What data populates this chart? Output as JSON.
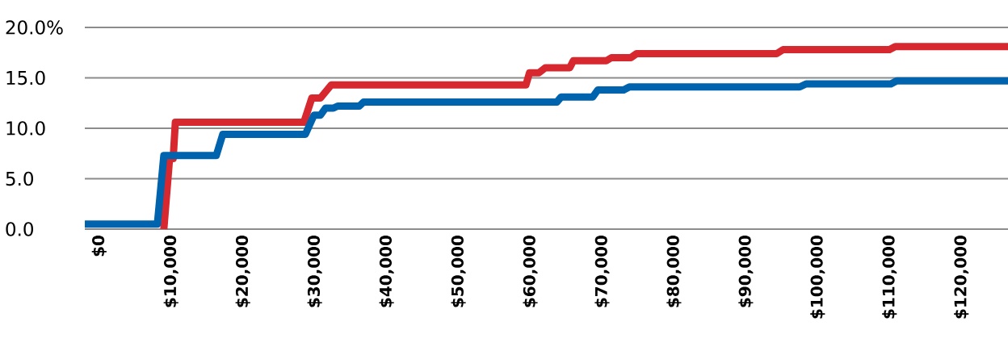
{
  "chart_data": {
    "type": "line",
    "xlim": [
      -2000,
      126500
    ],
    "ylim": [
      0,
      20
    ],
    "xticks": [
      {
        "value": 0,
        "label": "$0"
      },
      {
        "value": 10000,
        "label": "$10,000"
      },
      {
        "value": 20000,
        "label": "$20,000"
      },
      {
        "value": 30000,
        "label": "$30,000"
      },
      {
        "value": 40000,
        "label": "$40,000"
      },
      {
        "value": 50000,
        "label": "$50,000"
      },
      {
        "value": 60000,
        "label": "$60,000"
      },
      {
        "value": 70000,
        "label": "$70,000"
      },
      {
        "value": 80000,
        "label": "$80,000"
      },
      {
        "value": 90000,
        "label": "$90,000"
      },
      {
        "value": 100000,
        "label": "$100,000"
      },
      {
        "value": 110000,
        "label": "$110,000"
      },
      {
        "value": 120000,
        "label": "$120,000"
      }
    ],
    "yticks": [
      {
        "value": 0,
        "label": "0.0"
      },
      {
        "value": 5,
        "label": "5.0"
      },
      {
        "value": 10,
        "label": "10.0"
      },
      {
        "value": 15,
        "label": "15.0"
      },
      {
        "value": 20,
        "label": "20.0%"
      }
    ],
    "grid": "y",
    "series": [
      {
        "color": "#d7282f",
        "x": [
          9000,
          9800,
          10300,
          10600,
          28500,
          29600,
          30800,
          32300,
          59400,
          59900,
          61200,
          62100,
          65500,
          66000,
          70600,
          71300,
          74000,
          74800,
          94300,
          95200,
          110000,
          110800,
          126500
        ],
        "values": [
          0,
          7.0,
          7.0,
          10.6,
          10.6,
          13.0,
          13.0,
          14.3,
          14.3,
          15.5,
          15.5,
          16.0,
          16.0,
          16.7,
          16.7,
          17.0,
          17.0,
          17.4,
          17.4,
          17.8,
          17.8,
          18.1,
          18.1
        ]
      },
      {
        "color": "#0063ae",
        "x": [
          -2000,
          8100,
          9000,
          16300,
          17200,
          28700,
          29900,
          30800,
          31500,
          32600,
          33200,
          36200,
          36800,
          63700,
          64300,
          68700,
          69400,
          73000,
          73800,
          97500,
          98400,
          110200,
          111000,
          126500
        ],
        "values": [
          0.5,
          0.5,
          7.3,
          7.3,
          9.4,
          9.4,
          11.3,
          11.3,
          12.0,
          12.0,
          12.2,
          12.2,
          12.6,
          12.6,
          13.1,
          13.1,
          13.8,
          13.8,
          14.1,
          14.1,
          14.4,
          14.4,
          14.7,
          14.7
        ]
      }
    ]
  }
}
